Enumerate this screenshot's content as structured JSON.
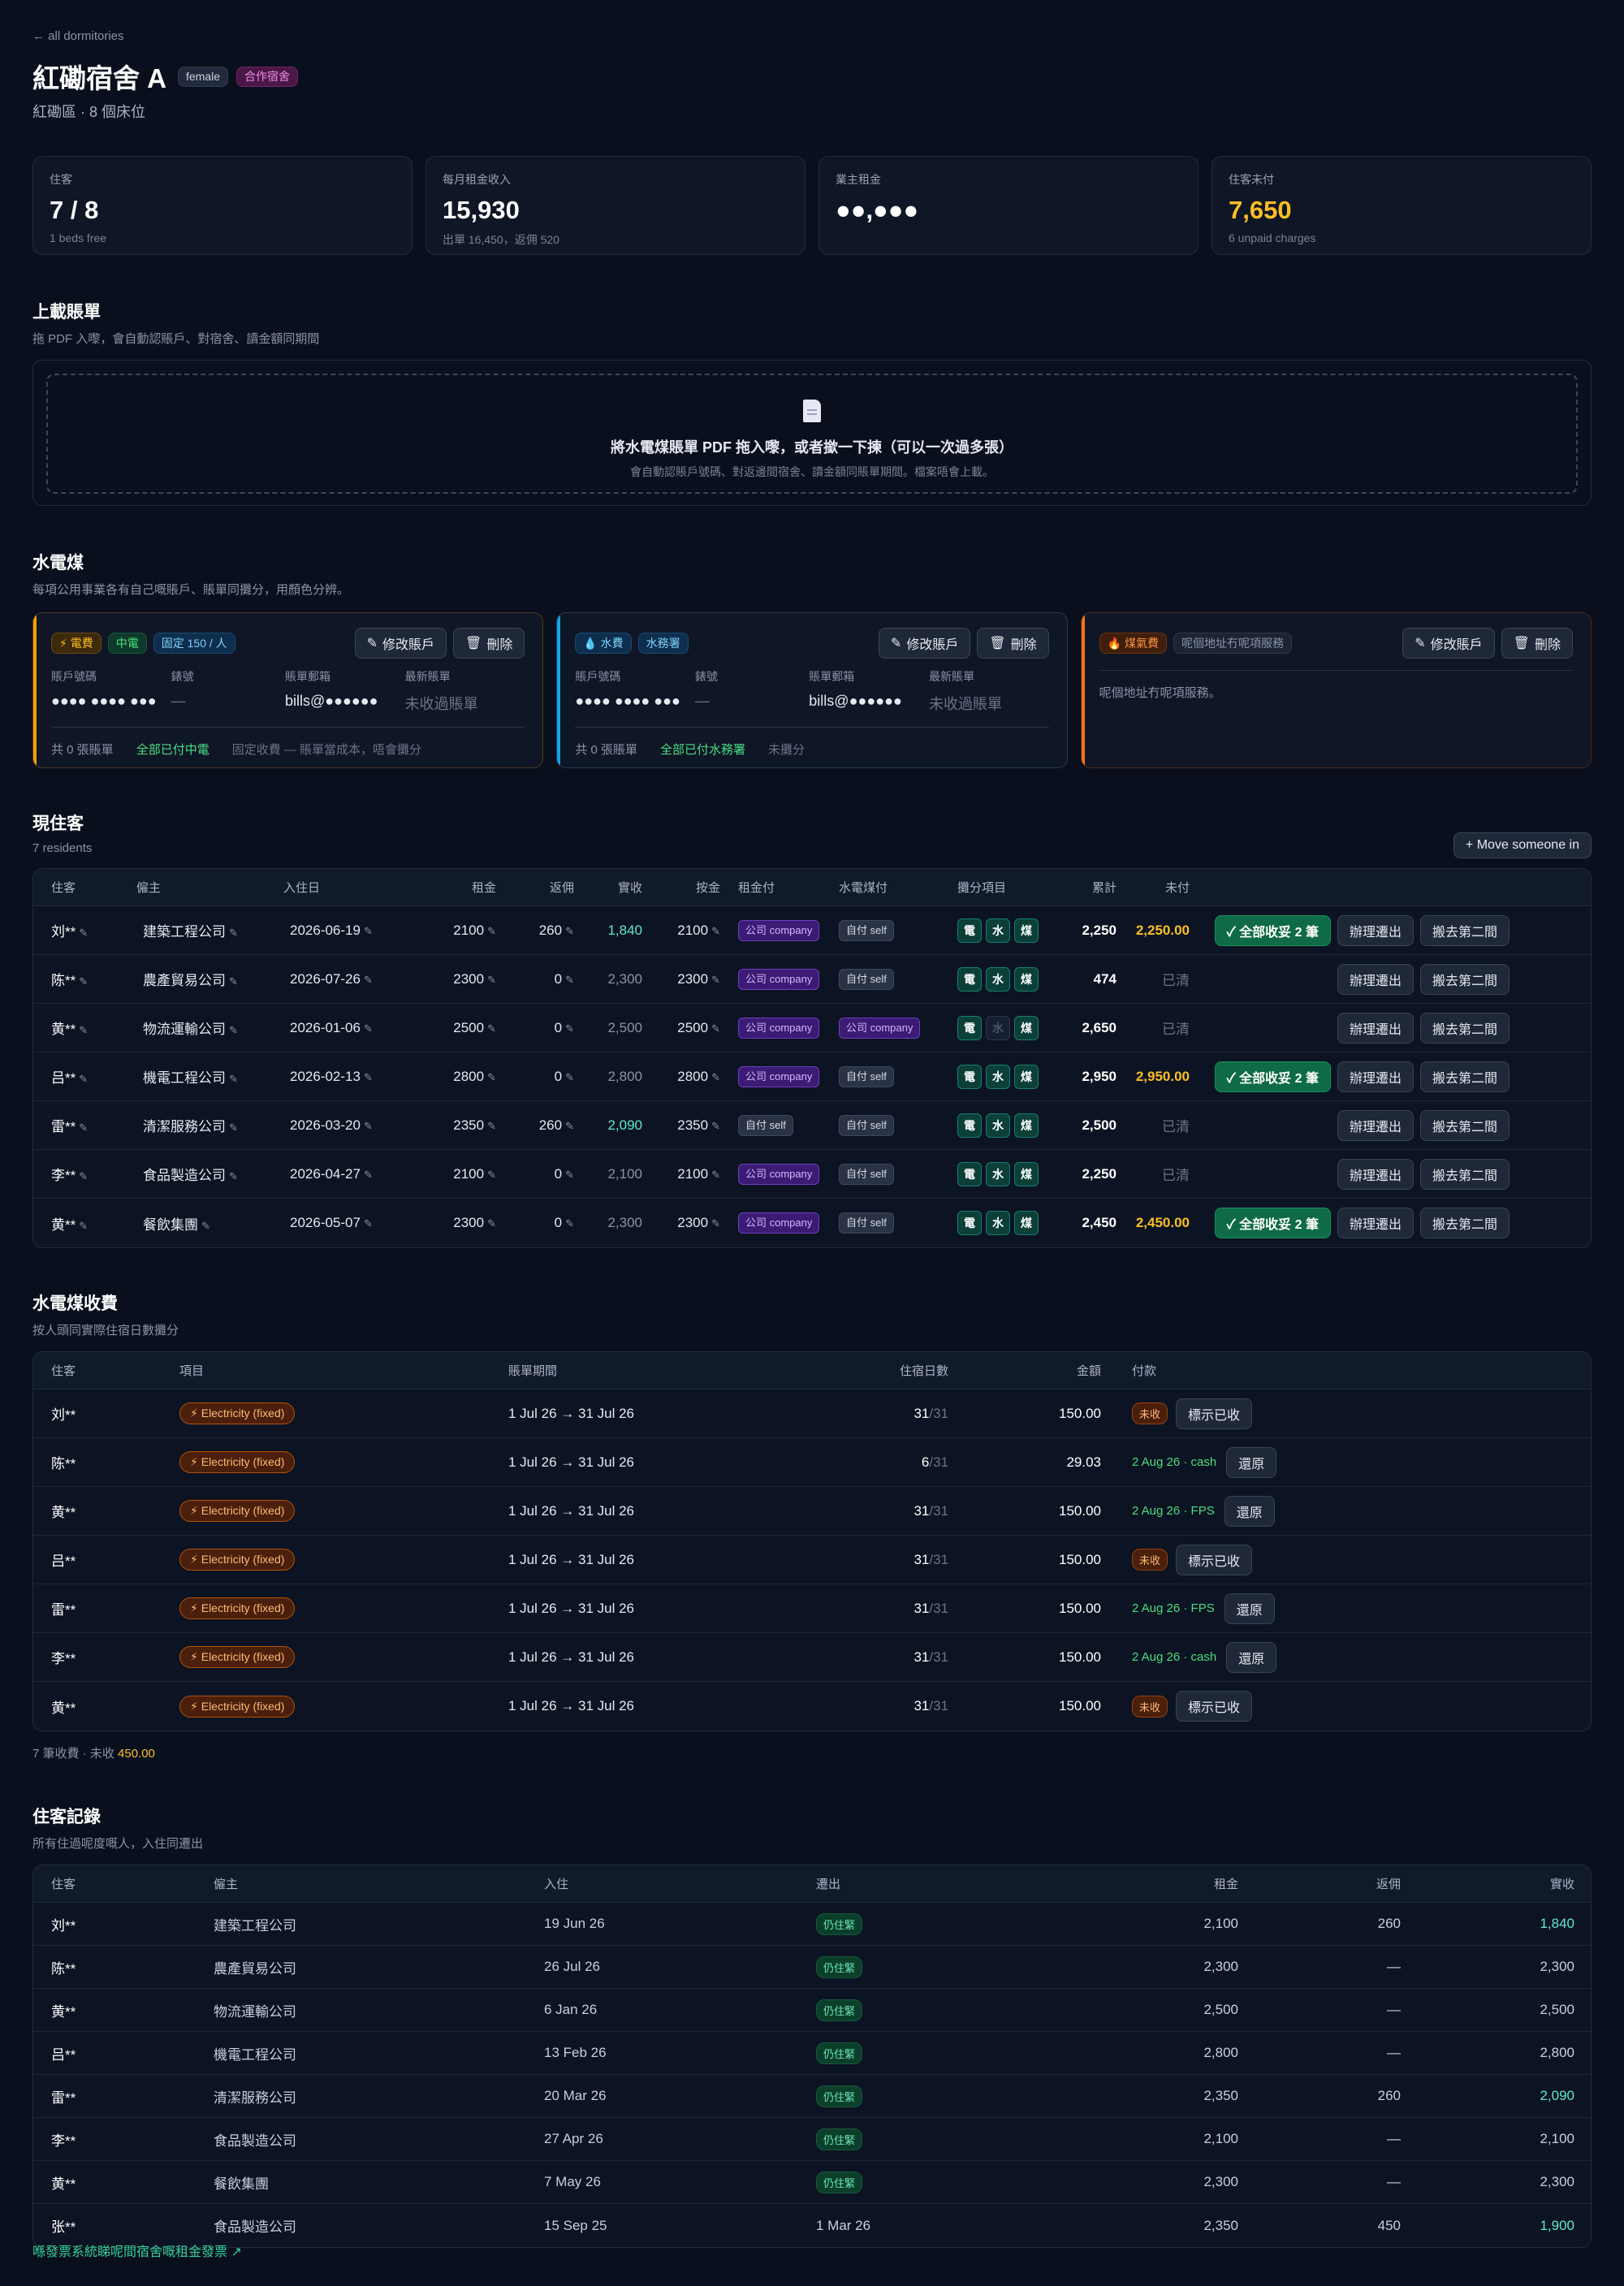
{
  "header": {
    "back": "← all dormitories",
    "title": "紅磡宿舍 A",
    "badge_gender": "female",
    "badge_type": "合作宿舍",
    "subtitle": "紅磡區 · 8 個床位"
  },
  "stats": [
    {
      "label": "住客",
      "value": "7 / 8",
      "sub": "1 beds free"
    },
    {
      "label": "每月租金收入",
      "value": "15,930",
      "sub": "出單 16,450，返佣 520"
    },
    {
      "label": "業主租金",
      "value": "●●,●●●",
      "sub": ""
    },
    {
      "label": "住客未付",
      "value": "7,650",
      "sub": "6 unpaid charges"
    }
  ],
  "upload": {
    "title": "上載賬單",
    "subtitle": "拖 PDF 入嚟，會自動認賬戶、對宿舍、讀金額同期間",
    "main": "將水電煤賬單 PDF 拖入嚟，或者撳一下揀（可以一次過多張）",
    "sub": "會自動認賬戶號碼、對返邊間宿舍、讀金額同賬單期間。檔案唔會上載。"
  },
  "utilities": {
    "title": "水電煤",
    "subtitle": "每項公用事業各有自己嘅賬戶、賬單同攤分，用顏色分辨。",
    "edit_label": "修改賬戶",
    "delete_label": "刪除",
    "labels": {
      "account": "賬戶號碼",
      "meter": "錶號",
      "email": "賬單郵箱",
      "latest": "最新賬單"
    },
    "electricity": {
      "chip": "電費",
      "provider": "中電",
      "fixed": "固定 150 / 人",
      "account": "●●●● ●●●● ●●●",
      "meter": "—",
      "email": "bills@●●●●●●",
      "latest": "未收過賬單",
      "foot_count": "共 0 張賬單",
      "foot_status": "全部已付中電",
      "foot_note": "固定收費 — 賬單當成本，唔會攤分"
    },
    "water": {
      "chip": "水費",
      "provider": "水務署",
      "account": "●●●● ●●●● ●●●",
      "meter": "—",
      "email": "bills@●●●●●●",
      "latest": "未收過賬單",
      "foot_count": "共 0 張賬單",
      "foot_status": "全部已付水務署",
      "foot_note": "未攤分"
    },
    "gas": {
      "chip": "煤氣費",
      "note_chip": "呢個地址冇呢項服務",
      "note": "呢個地址冇呢項服務。"
    }
  },
  "residents": {
    "title": "現住客",
    "subtitle": "7 residents",
    "move_in": "+ Move someone in",
    "columns": [
      "住客",
      "僱主",
      "入住日",
      "租金",
      "返佣",
      "實收",
      "按金",
      "租金付",
      "水電煤付",
      "攤分項目",
      "累計",
      "未付"
    ],
    "util_labels": [
      "電",
      "水",
      "煤"
    ],
    "btn_collect": "✓ 全部收妥 2 筆",
    "btn_moveout": "辦理遷出",
    "btn_move": "搬去第二間",
    "rows": [
      {
        "name": "刘**",
        "employer": "建築工程公司",
        "date": "2026-06-19",
        "rent": "2100",
        "rebate": "260",
        "net": "1,840",
        "deposit": "2100",
        "rent_pay": "公司 company",
        "util_pay": "自付 self",
        "gas_on": true,
        "total": "2,250",
        "unpaid": "2,250.00",
        "collect": true
      },
      {
        "name": "陈**",
        "employer": "農產貿易公司",
        "date": "2026-07-26",
        "rent": "2300",
        "rebate": "0",
        "net": "2,300",
        "deposit": "2300",
        "rent_pay": "公司 company",
        "util_pay": "自付 self",
        "gas_on": true,
        "total": "474",
        "unpaid": "已清",
        "collect": false
      },
      {
        "name": "黄**",
        "employer": "物流運輸公司",
        "date": "2026-01-06",
        "rent": "2500",
        "rebate": "0",
        "net": "2,500",
        "deposit": "2500",
        "rent_pay": "公司 company",
        "util_pay": "公司 company",
        "gas_on": true,
        "water_off": true,
        "total": "2,650",
        "unpaid": "已清",
        "collect": false
      },
      {
        "name": "吕**",
        "employer": "機電工程公司",
        "date": "2026-02-13",
        "rent": "2800",
        "rebate": "0",
        "net": "2,800",
        "deposit": "2800",
        "rent_pay": "公司 company",
        "util_pay": "自付 self",
        "gas_on": true,
        "total": "2,950",
        "unpaid": "2,950.00",
        "collect": true
      },
      {
        "name": "雷**",
        "employer": "清潔服務公司",
        "date": "2026-03-20",
        "rent": "2350",
        "rebate": "260",
        "net": "2,090",
        "deposit": "2350",
        "rent_pay": "自付 self",
        "util_pay": "自付 self",
        "gas_on": true,
        "total": "2,500",
        "unpaid": "已清",
        "collect": false
      },
      {
        "name": "李**",
        "employer": "食品製造公司",
        "date": "2026-04-27",
        "rent": "2100",
        "rebate": "0",
        "net": "2,100",
        "deposit": "2100",
        "rent_pay": "公司 company",
        "util_pay": "自付 self",
        "gas_on": true,
        "total": "2,250",
        "unpaid": "已清",
        "collect": false
      },
      {
        "name": "黄**",
        "employer": "餐飲集團",
        "date": "2026-05-07",
        "rent": "2300",
        "rebate": "0",
        "net": "2,300",
        "deposit": "2300",
        "rent_pay": "公司 company",
        "util_pay": "自付 self",
        "gas_on": true,
        "total": "2,450",
        "unpaid": "2,450.00",
        "collect": true
      }
    ]
  },
  "charges": {
    "title": "水電煤收費",
    "subtitle": "按人頭同實際住宿日數攤分",
    "columns": [
      "住客",
      "項目",
      "賬單期間",
      "住宿日數",
      "金額",
      "付款"
    ],
    "item_label": "Electricity (fixed)",
    "unpaid_label": "未收",
    "mark_paid": "標示已收",
    "revert": "還原",
    "rows": [
      {
        "name": "刘**",
        "period": "1 Jul 26 → 31 Jul 26",
        "days": "31",
        "of": "/31",
        "amount": "150.00",
        "paid": false,
        "paid_note": ""
      },
      {
        "name": "陈**",
        "period": "1 Jul 26 → 31 Jul 26",
        "days": "6",
        "of": "/31",
        "amount": "29.03",
        "paid": true,
        "paid_note": "2 Aug 26 · cash"
      },
      {
        "name": "黄**",
        "period": "1 Jul 26 → 31 Jul 26",
        "days": "31",
        "of": "/31",
        "amount": "150.00",
        "paid": true,
        "paid_note": "2 Aug 26 · FPS"
      },
      {
        "name": "吕**",
        "period": "1 Jul 26 → 31 Jul 26",
        "days": "31",
        "of": "/31",
        "amount": "150.00",
        "paid": false,
        "paid_note": ""
      },
      {
        "name": "雷**",
        "period": "1 Jul 26 → 31 Jul 26",
        "days": "31",
        "of": "/31",
        "amount": "150.00",
        "paid": true,
        "paid_note": "2 Aug 26 · FPS"
      },
      {
        "name": "李**",
        "period": "1 Jul 26 → 31 Jul 26",
        "days": "31",
        "of": "/31",
        "amount": "150.00",
        "paid": true,
        "paid_note": "2 Aug 26 · cash"
      },
      {
        "name": "黄**",
        "period": "1 Jul 26 → 31 Jul 26",
        "days": "31",
        "of": "/31",
        "amount": "150.00",
        "paid": false,
        "paid_note": ""
      }
    ],
    "summary_prefix": "7 筆收費 · 未收 ",
    "summary_amount": "450.00"
  },
  "history": {
    "title": "住客記錄",
    "subtitle": "所有住過呢度嘅人，入住同遷出",
    "columns": [
      "住客",
      "僱主",
      "入住",
      "遷出",
      "租金",
      "返佣",
      "實收"
    ],
    "live_label": "仍住緊",
    "rows": [
      {
        "name": "刘**",
        "employer": "建築工程公司",
        "in": "19 Jun 26",
        "out": "",
        "rent": "2,100",
        "rebate": "260",
        "net": "1,840",
        "net_hl": true
      },
      {
        "name": "陈**",
        "employer": "農產貿易公司",
        "in": "26 Jul 26",
        "out": "",
        "rent": "2,300",
        "rebate": "—",
        "net": "2,300",
        "net_hl": false
      },
      {
        "name": "黄**",
        "employer": "物流運輸公司",
        "in": "6 Jan 26",
        "out": "",
        "rent": "2,500",
        "rebate": "—",
        "net": "2,500",
        "net_hl": false
      },
      {
        "name": "吕**",
        "employer": "機電工程公司",
        "in": "13 Feb 26",
        "out": "",
        "rent": "2,800",
        "rebate": "—",
        "net": "2,800",
        "net_hl": false
      },
      {
        "name": "雷**",
        "employer": "清潔服務公司",
        "in": "20 Mar 26",
        "out": "",
        "rent": "2,350",
        "rebate": "260",
        "net": "2,090",
        "net_hl": true
      },
      {
        "name": "李**",
        "employer": "食品製造公司",
        "in": "27 Apr 26",
        "out": "",
        "rent": "2,100",
        "rebate": "—",
        "net": "2,100",
        "net_hl": false
      },
      {
        "name": "黄**",
        "employer": "餐飲集團",
        "in": "7 May 26",
        "out": "",
        "rent": "2,300",
        "rebate": "—",
        "net": "2,300",
        "net_hl": false
      },
      {
        "name": "张**",
        "employer": "食品製造公司",
        "in": "15 Sep 25",
        "out": "1 Mar 26",
        "rent": "2,350",
        "rebate": "450",
        "net": "1,900",
        "net_hl": true
      }
    ]
  },
  "footer": {
    "link": "喺發票系統睇呢間宿舍嘅租金發票 ↗"
  }
}
